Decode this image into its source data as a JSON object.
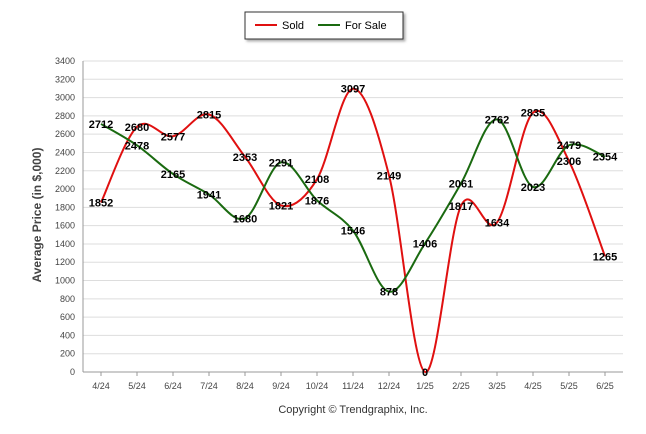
{
  "chart_data": {
    "type": "line",
    "categories": [
      "4/24",
      "5/24",
      "6/24",
      "7/24",
      "8/24",
      "9/24",
      "10/24",
      "11/24",
      "12/24",
      "1/25",
      "2/25",
      "3/25",
      "4/25",
      "5/25",
      "6/25"
    ],
    "series": [
      {
        "name": "Sold",
        "color": "#e01010",
        "values": [
          1852,
          2680,
          2577,
          2815,
          2353,
          1821,
          2108,
          3097,
          2149,
          0,
          1817,
          1634,
          2835,
          2306,
          1265
        ]
      },
      {
        "name": "For Sale",
        "color": "#1a6a10",
        "values": [
          2712,
          2478,
          2165,
          1941,
          1680,
          2291,
          1876,
          1546,
          878,
          1406,
          2061,
          2762,
          2023,
          2479,
          2354
        ]
      }
    ],
    "ylabel": "Average Price (in $,000)",
    "xlabel": "",
    "ylim": [
      0,
      3400
    ],
    "yticks": [
      "0",
      "200",
      "400",
      "600",
      "800",
      "1000",
      "1200",
      "1400",
      "1600",
      "1800",
      "2000",
      "2200",
      "2400",
      "2600",
      "2800",
      "3000",
      "3200",
      "3400"
    ],
    "grid": true,
    "legend_position": "top-center"
  },
  "footer": {
    "copyright": "Copyright © Trendgraphix, Inc."
  }
}
